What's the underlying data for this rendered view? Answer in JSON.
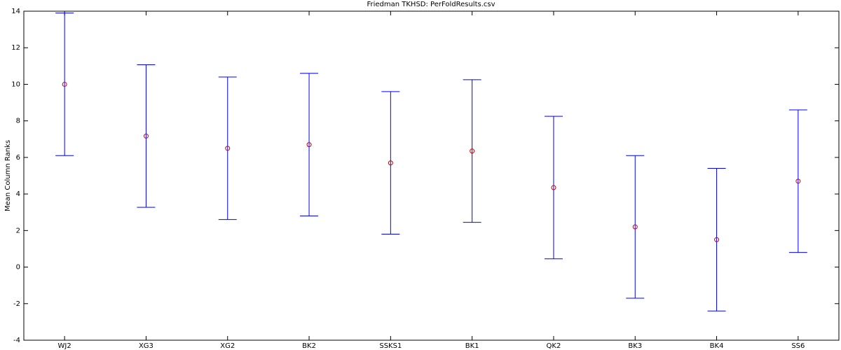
{
  "chart_data": {
    "type": "errorbar",
    "title": "Friedman TKHSD: PerFoldResults.csv",
    "y_label": "Mean Column Ranks",
    "categories": [
      "WJ2",
      "XG3",
      "XG2",
      "BK2",
      "SSKS1",
      "BK1",
      "QK2",
      "BK3",
      "BK4",
      "SS6"
    ],
    "values": [
      10.0,
      7.17,
      6.5,
      6.7,
      5.7,
      6.35,
      4.35,
      2.2,
      1.5,
      4.7
    ],
    "errors": [
      3.9,
      3.9,
      3.9,
      3.9,
      3.9,
      3.9,
      3.9,
      3.9,
      3.9,
      3.9
    ],
    "color": "#0000ff",
    "marker_color": "#cc0000",
    "ylim": [
      -4,
      14
    ],
    "yticks": [
      -4,
      -2,
      0,
      2,
      4,
      6,
      8,
      10,
      12,
      14
    ],
    "grid": false
  }
}
